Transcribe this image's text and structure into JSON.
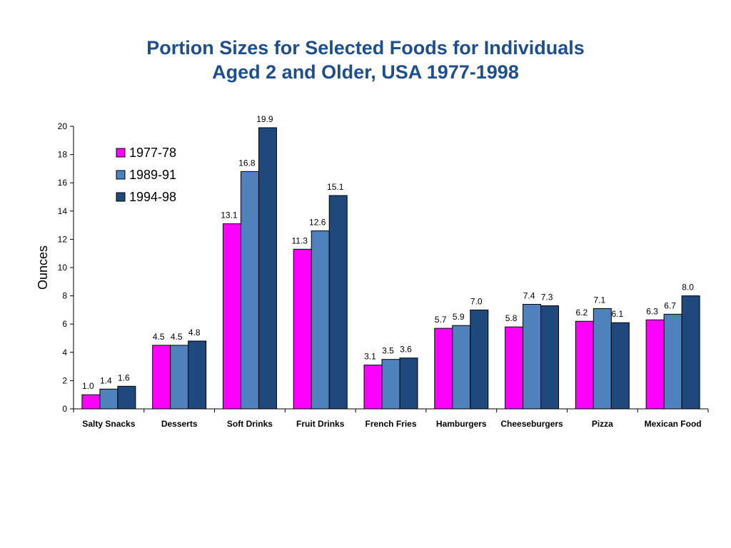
{
  "chart_data": {
    "type": "bar",
    "title_line1": "Portion Sizes for Selected Foods for Individuals",
    "title_line2": "Aged 2 and Older, USA 1977-1998",
    "xlabel": "",
    "ylabel": "Ounces",
    "ylim": [
      0,
      20
    ],
    "yticks": [
      "0",
      "2",
      "4",
      "6",
      "8",
      "10",
      "12",
      "14",
      "16",
      "18",
      "20"
    ],
    "grid": false,
    "legend_position": "top-left",
    "categories": [
      "Salty Snacks",
      "Desserts",
      "Soft Drinks",
      "Fruit Drinks",
      "French Fries",
      "Hamburgers",
      "Cheeseburgers",
      "Pizza",
      "Mexican Food"
    ],
    "series": [
      {
        "name": "1977-78",
        "color": "#FF00FF",
        "values": [
          1.0,
          4.5,
          13.1,
          11.3,
          3.1,
          5.7,
          5.8,
          6.2,
          6.3
        ],
        "labels": [
          "1.0",
          "4.5",
          "13.1",
          "11.3",
          "3.1",
          "5.7",
          "5.8",
          "6.2",
          "6.3"
        ]
      },
      {
        "name": "1989-91",
        "color": "#4F81BD",
        "values": [
          1.4,
          4.5,
          16.8,
          12.6,
          3.5,
          5.9,
          7.4,
          7.1,
          6.7
        ],
        "labels": [
          "1.4",
          "4.5",
          "16.8",
          "12.6",
          "3.5",
          "5.9",
          "7.4",
          "7.1",
          "6.7"
        ]
      },
      {
        "name": "1994-98",
        "color": "#1F497D",
        "values": [
          1.6,
          4.8,
          19.9,
          15.1,
          3.6,
          7.0,
          7.3,
          6.1,
          8.0
        ],
        "labels": [
          "1.6",
          "4.8",
          "19.9",
          "15.1",
          "3.6",
          "7.0",
          "7.3",
          "6.1",
          "8.0"
        ]
      }
    ]
  }
}
